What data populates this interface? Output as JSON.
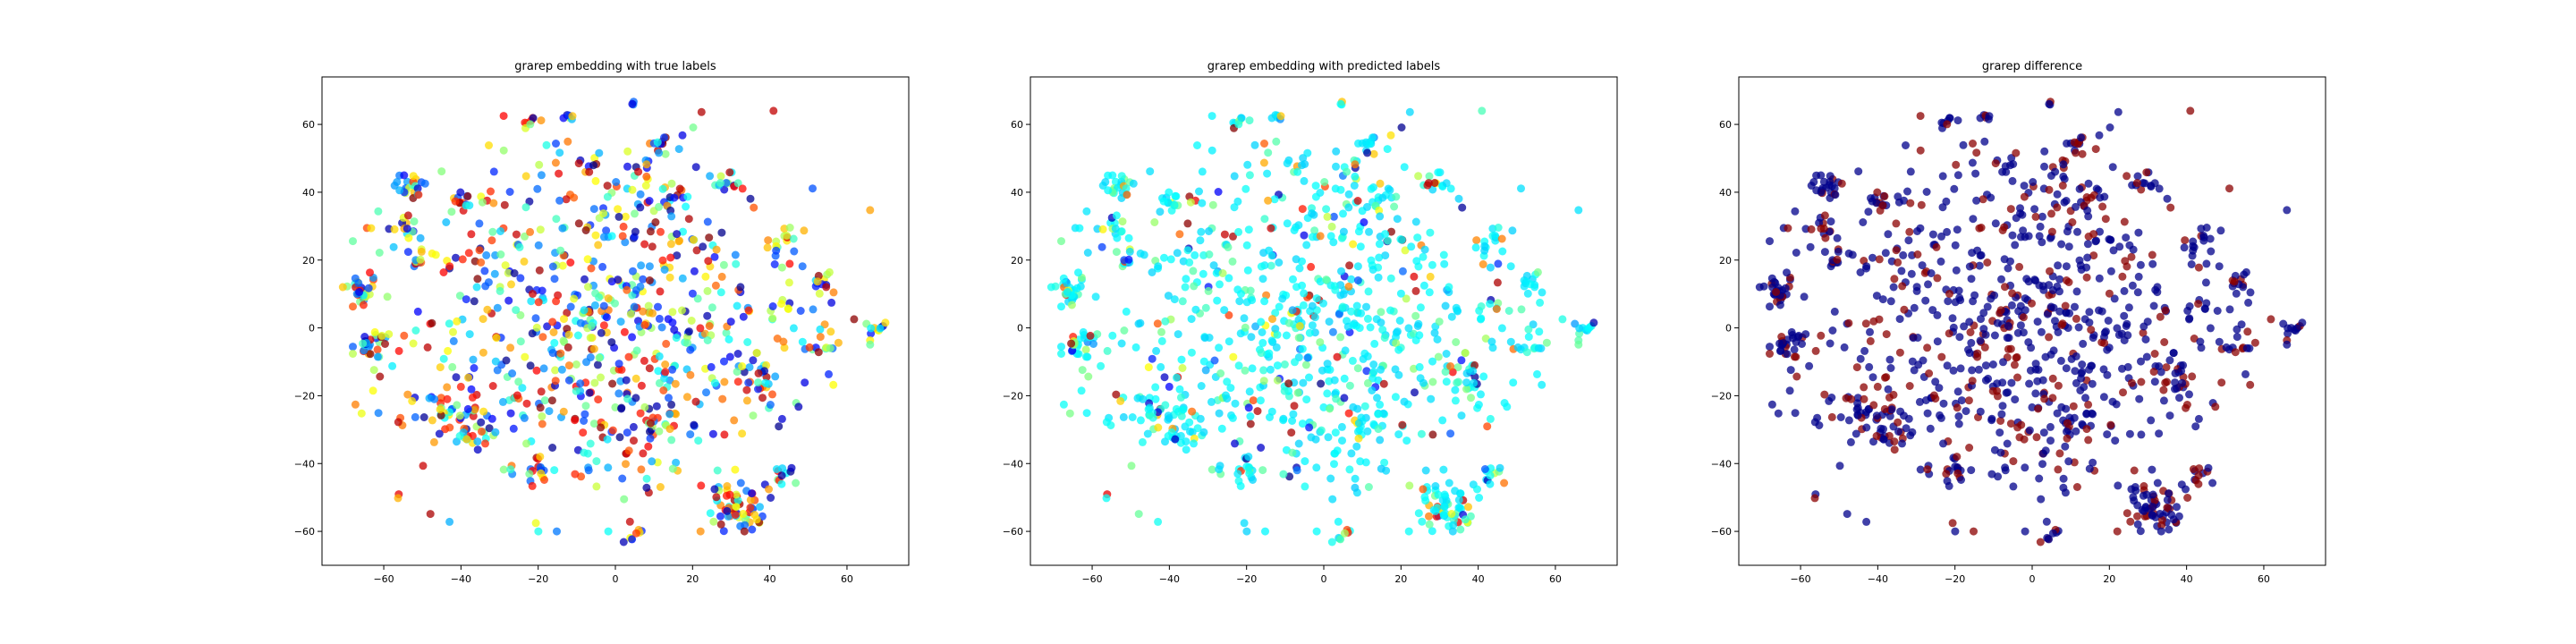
{
  "chart_data": [
    {
      "type": "scatter",
      "title": "grarep embedding with true labels",
      "xlabel": "",
      "ylabel": "",
      "xlim": [
        -76,
        76
      ],
      "ylim": [
        -70,
        74
      ],
      "xticks": [
        -60,
        -40,
        -20,
        0,
        20,
        40,
        60
      ],
      "yticks": [
        -60,
        -40,
        -20,
        0,
        20,
        40,
        60
      ],
      "grid": false,
      "colormap": "jet",
      "color_mode": "true"
    },
    {
      "type": "scatter",
      "title": "grarep embedding with predicted labels",
      "xlabel": "",
      "ylabel": "",
      "xlim": [
        -76,
        76
      ],
      "ylim": [
        -70,
        74
      ],
      "xticks": [
        -60,
        -40,
        -20,
        0,
        20,
        40,
        60
      ],
      "yticks": [
        -60,
        -40,
        -20,
        0,
        20,
        40,
        60
      ],
      "grid": false,
      "colormap": "jet",
      "color_mode": "pred"
    },
    {
      "type": "scatter",
      "title": "grarep difference",
      "xlabel": "",
      "ylabel": "",
      "xlim": [
        -76,
        76
      ],
      "ylim": [
        -70,
        74
      ],
      "xticks": [
        -60,
        -40,
        -20,
        0,
        20,
        40,
        60
      ],
      "yticks": [
        -60,
        -40,
        -20,
        0,
        20,
        40,
        60
      ],
      "grid": false,
      "colors": {
        "match": "#00008b",
        "mismatch": "#8b0000"
      },
      "color_mode": "diff"
    }
  ],
  "clusters": [
    {
      "x": -66,
      "y": 11,
      "n": 28,
      "s": 2.5
    },
    {
      "x": -62,
      "y": -5,
      "n": 24,
      "s": 2.2
    },
    {
      "x": -53,
      "y": 42,
      "n": 20,
      "s": 2.2
    },
    {
      "x": -55,
      "y": 30,
      "n": 12,
      "s": 2.0
    },
    {
      "x": -51,
      "y": 21,
      "n": 14,
      "s": 2.5
    },
    {
      "x": -40,
      "y": 37,
      "n": 14,
      "s": 2.0
    },
    {
      "x": -22,
      "y": 61,
      "n": 8,
      "s": 1.2
    },
    {
      "x": -12,
      "y": 62,
      "n": 6,
      "s": 1.0
    },
    {
      "x": 4,
      "y": 66,
      "n": 3,
      "s": 0.5
    },
    {
      "x": 12,
      "y": 54,
      "n": 12,
      "s": 2.0
    },
    {
      "x": 7,
      "y": 47,
      "n": 10,
      "s": 1.8
    },
    {
      "x": 29,
      "y": 43,
      "n": 12,
      "s": 2.0
    },
    {
      "x": -7,
      "y": 48,
      "n": 8,
      "s": 1.5
    },
    {
      "x": 54,
      "y": 13,
      "n": 12,
      "s": 1.8
    },
    {
      "x": 68,
      "y": 0,
      "n": 10,
      "s": 1.2
    },
    {
      "x": 44,
      "y": 25,
      "n": 16,
      "s": 3.0
    },
    {
      "x": 43,
      "y": 6,
      "n": 8,
      "s": 1.5
    },
    {
      "x": 52,
      "y": -5,
      "n": 12,
      "s": 2.5
    },
    {
      "x": -44,
      "y": -25,
      "n": 45,
      "s": 4.5
    },
    {
      "x": -34,
      "y": -32,
      "n": 16,
      "s": 2.5
    },
    {
      "x": -20,
      "y": -42,
      "n": 16,
      "s": 2.0
    },
    {
      "x": 32,
      "y": -53,
      "n": 55,
      "s": 3.5
    },
    {
      "x": 43,
      "y": -44,
      "n": 12,
      "s": 2.0
    },
    {
      "x": 5,
      "y": -62,
      "n": 8,
      "s": 1.5
    },
    {
      "x": 37,
      "y": -15,
      "n": 24,
      "s": 3.0
    },
    {
      "x": 11,
      "y": -28,
      "n": 18,
      "s": 3.0
    },
    {
      "x": 14,
      "y": 38,
      "n": 12,
      "s": 2.5
    },
    {
      "x": -30,
      "y": 21,
      "n": 14,
      "s": 3.0
    }
  ],
  "background": {
    "n": 650,
    "cx": -2,
    "cy": 0,
    "sx": 26,
    "sy": 26
  }
}
